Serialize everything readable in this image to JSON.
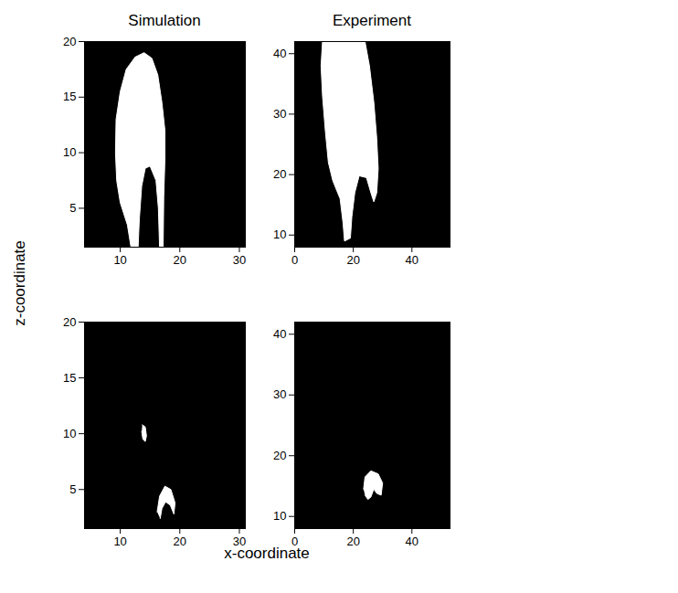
{
  "chart_data": {
    "type": "image",
    "x_label": "x-coordinate",
    "y_label": "z-coordinate",
    "panels": [
      {
        "title": "Simulation",
        "xlim": [
          4,
          31
        ],
        "ylim": [
          1.5,
          20
        ],
        "xticks": [
          10,
          20,
          30
        ],
        "yticks": [
          5,
          10,
          15,
          20
        ],
        "regions": [
          {
            "x": [
              12.5,
              14,
              15.3,
              16.3,
              17,
              17.5,
              17.5,
              17.3,
              17.2,
              16.6,
              16.4,
              16,
              15,
              14.2,
              13.6,
              13.2,
              13,
              11.8,
              11.2,
              10,
              9.4,
              9.2,
              9.3,
              10,
              11,
              12.5
            ],
            "z": [
              18.6,
              19,
              18.5,
              17,
              14.5,
              12,
              9.5,
              6,
              1.5,
              1.5,
              5,
              7.5,
              8.8,
              8.6,
              7,
              4,
              1.5,
              1.5,
              3.5,
              5.5,
              7.5,
              10,
              13,
              15.5,
              17.5,
              18.6
            ]
          }
        ]
      },
      {
        "title": "Experiment",
        "xlim": [
          0,
          53
        ],
        "ylim": [
          8,
          42
        ],
        "xticks": [
          0,
          20,
          40
        ],
        "yticks": [
          10,
          20,
          30,
          40
        ],
        "regions": [
          {
            "x": [
              9.5,
              24,
              25.5,
              27,
              28,
              28.5,
              28,
              27,
              26,
              24.5,
              22,
              20.5,
              19.5,
              19,
              17,
              16.5,
              15.5,
              13,
              11.5,
              10.5,
              9.5,
              9,
              9.5
            ],
            "z": [
              42,
              42,
              38,
              32,
              26,
              21,
              17,
              15.5,
              17,
              19.5,
              19.8,
              17,
              13,
              9.5,
              9,
              12,
              16,
              19,
              22,
              27,
              33,
              38,
              42
            ]
          }
        ]
      },
      {
        "xlim": [
          4,
          31
        ],
        "ylim": [
          1.5,
          20
        ],
        "xticks": [
          10,
          20,
          30
        ],
        "yticks": [
          5,
          10,
          15,
          20
        ],
        "regions": [
          {
            "x": [
              13.7,
              14.2,
              14.4,
              14.2,
              13.8,
              13.6
            ],
            "z": [
              10.8,
              10.6,
              9.8,
              9.3,
              9.5,
              10.2
            ]
          },
          {
            "x": [
              16.2,
              16.6,
              17.5,
              18.5,
              19.2,
              19,
              18.4,
              17.6,
              17,
              16.7
            ],
            "z": [
              3,
              4.4,
              5.3,
              5,
              3.8,
              2.8,
              3.6,
              3.9,
              3.3,
              2.4
            ]
          }
        ]
      },
      {
        "xlim": [
          0,
          53
        ],
        "ylim": [
          8,
          42
        ],
        "xticks": [
          0,
          20,
          40
        ],
        "yticks": [
          10,
          20,
          30,
          40
        ],
        "regions": [
          {
            "x": [
              23.5,
              24,
              26,
              28.5,
              30,
              29.5,
              28,
              27,
              26,
              25,
              24
            ],
            "z": [
              14.5,
              16.5,
              17.5,
              17,
              15.5,
              13.5,
              13.8,
              14.5,
              13.2,
              12.8,
              13.5
            ]
          }
        ]
      }
    ]
  }
}
